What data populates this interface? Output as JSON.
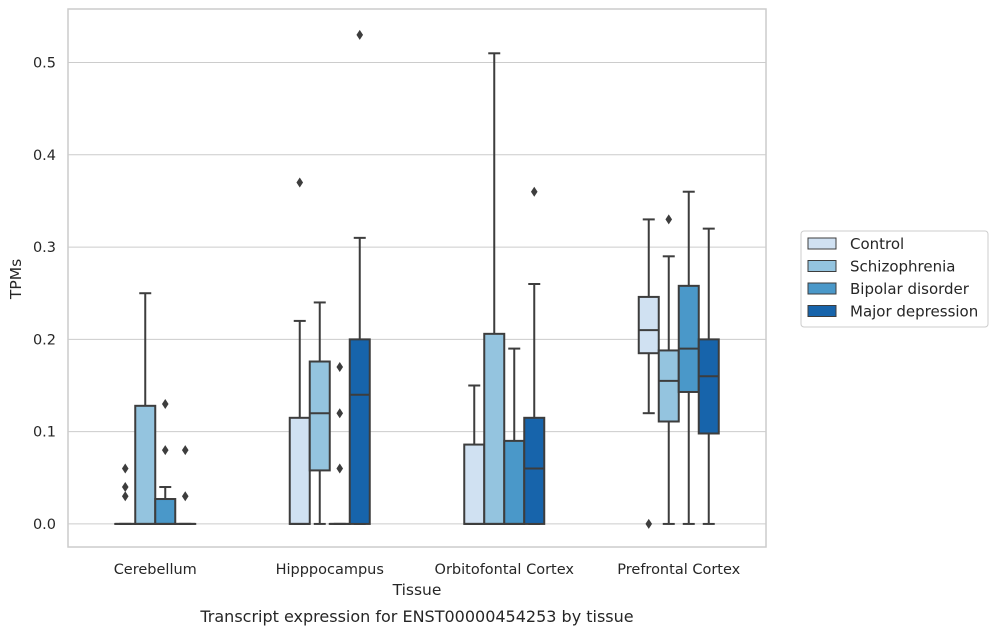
{
  "chart_data": {
    "type": "boxplot",
    "title": "",
    "caption": "Transcript expression for ENST00000454253 by tissue",
    "xlabel": "Tissue",
    "ylabel": "TPMs",
    "ylim": [
      -0.025,
      0.558
    ],
    "yticks": [
      0.0,
      0.1,
      0.2,
      0.3,
      0.4,
      0.5
    ],
    "ytick_labels": [
      "0.0",
      "0.1",
      "0.2",
      "0.3",
      "0.4",
      "0.5"
    ],
    "categories": [
      "Cerebellum",
      "Hipppocampus",
      "Orbitofontal Cortex",
      "Prefrontal Cortex"
    ],
    "grid": "horizontal",
    "legend_position": "right",
    "series": [
      {
        "name": "Control",
        "color": "#d0e1f2",
        "boxes": [
          {
            "whislo": 0,
            "q1": 0,
            "med": 0,
            "q3": 0,
            "whishi": 0,
            "fliers": [
              0.03,
              0.04,
              0.06
            ]
          },
          {
            "whislo": 0,
            "q1": 0,
            "med": 0,
            "q3": 0.115,
            "whishi": 0.22,
            "fliers": [
              0.37
            ]
          },
          {
            "whislo": 0,
            "q1": 0,
            "med": 0,
            "q3": 0.086,
            "whishi": 0.15,
            "fliers": []
          },
          {
            "whislo": 0.12,
            "q1": 0.185,
            "med": 0.21,
            "q3": 0.246,
            "whishi": 0.33,
            "fliers": [
              0
            ]
          }
        ]
      },
      {
        "name": "Schizophrenia",
        "color": "#94c4df",
        "boxes": [
          {
            "whislo": 0,
            "q1": 0,
            "med": 0,
            "q3": 0.128,
            "whishi": 0.25,
            "fliers": []
          },
          {
            "whislo": 0,
            "q1": 0.058,
            "med": 0.12,
            "q3": 0.176,
            "whishi": 0.24,
            "fliers": []
          },
          {
            "whislo": 0,
            "q1": 0,
            "med": 0,
            "q3": 0.206,
            "whishi": 0.51,
            "fliers": []
          },
          {
            "whislo": 0,
            "q1": 0.111,
            "med": 0.155,
            "q3": 0.188,
            "whishi": 0.29,
            "fliers": [
              0.33
            ]
          }
        ]
      },
      {
        "name": "Bipolar disorder",
        "color": "#4a98c9",
        "boxes": [
          {
            "whislo": 0,
            "q1": 0,
            "med": 0,
            "q3": 0.027,
            "whishi": 0.04,
            "fliers": [
              0.08,
              0.13
            ]
          },
          {
            "whislo": 0,
            "q1": 0,
            "med": 0,
            "q3": 0,
            "whishi": 0,
            "fliers": [
              0.06,
              0.12,
              0.17
            ]
          },
          {
            "whislo": 0,
            "q1": 0,
            "med": 0,
            "q3": 0.09,
            "whishi": 0.19,
            "fliers": []
          },
          {
            "whislo": 0,
            "q1": 0.143,
            "med": 0.19,
            "q3": 0.258,
            "whishi": 0.36,
            "fliers": []
          }
        ]
      },
      {
        "name": "Major depression",
        "color": "#1764ab",
        "boxes": [
          {
            "whislo": 0,
            "q1": 0,
            "med": 0,
            "q3": 0,
            "whishi": 0,
            "fliers": [
              0.03,
              0.08
            ]
          },
          {
            "whislo": 0,
            "q1": 0,
            "med": 0.14,
            "q3": 0.2,
            "whishi": 0.31,
            "fliers": [
              0.53
            ]
          },
          {
            "whislo": 0,
            "q1": 0,
            "med": 0.06,
            "q3": 0.115,
            "whishi": 0.26,
            "fliers": [
              0.36
            ]
          },
          {
            "whislo": 0,
            "q1": 0.098,
            "med": 0.16,
            "q3": 0.2,
            "whishi": 0.32,
            "fliers": []
          }
        ]
      }
    ],
    "colors": {
      "grid": "#cccccc",
      "frame": "#cccccc",
      "line": "#3d3d3d",
      "text": "#262626"
    }
  }
}
